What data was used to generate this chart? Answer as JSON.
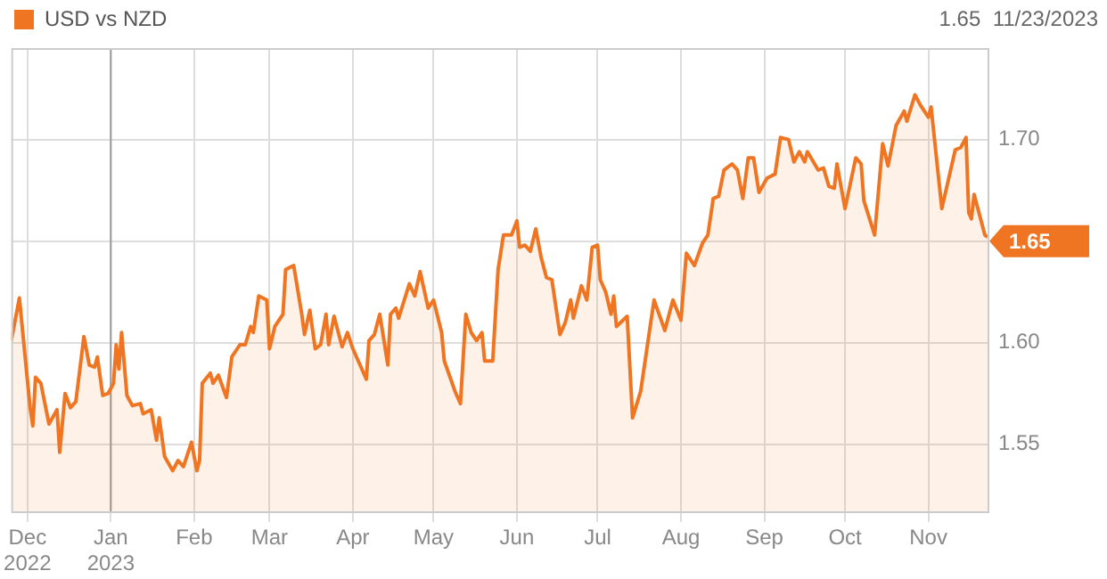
{
  "chart_data": {
    "type": "area",
    "legend": "top left",
    "grid": true,
    "marker": "none",
    "xlim": [
      "2022-11-25",
      "2023-11-23"
    ],
    "xticks": [
      {
        "value": "2022-12-01",
        "label": "Dec\n2022"
      },
      {
        "value": "2023-01-01",
        "label": "Jan\n2023"
      },
      {
        "value": "2023-02-01",
        "label": "Feb"
      },
      {
        "value": "2023-03-01",
        "label": "Mar"
      },
      {
        "value": "2023-04-01",
        "label": "Apr"
      },
      {
        "value": "2023-05-01",
        "label": "May"
      },
      {
        "value": "2023-06-01",
        "label": "Jun"
      },
      {
        "value": "2023-07-01",
        "label": "Jul"
      },
      {
        "value": "2023-08-01",
        "label": "Aug"
      },
      {
        "value": "2023-09-01",
        "label": "Sep"
      },
      {
        "value": "2023-10-01",
        "label": "Oct"
      },
      {
        "value": "2023-11-01",
        "label": "Nov"
      }
    ],
    "ylim": [
      1.517,
      1.745
    ],
    "yticks": [
      1.55,
      {
        "value": 1.6,
        "label": "1.60"
      },
      {
        "value": 1.65,
        "label": null
      },
      {
        "value": 1.7,
        "label": "1.70"
      }
    ],
    "ref_lines": [
      {
        "axis": "x",
        "value": "2023-01-01",
        "color": "#999999"
      }
    ],
    "annotations": [
      "1.65  11/23/2023",
      {
        "text": "1.65",
        "x": "2023-11-23",
        "y": 1.65
      }
    ],
    "series": [
      {
        "name": "USD vs NZD",
        "color": "#f07522",
        "x": [
          "2022-11-25",
          "2022-11-28",
          "2022-12-02",
          "2022-12-03",
          "2022-12-04",
          "2022-12-06",
          "2022-12-09",
          "2022-12-12",
          "2022-12-13",
          "2022-12-15",
          "2022-12-17",
          "2022-12-19",
          "2022-12-22",
          "2022-12-24",
          "2022-12-26",
          "2022-12-27",
          "2022-12-29",
          "2022-12-31",
          "2023-01-02",
          "2023-01-03",
          "2023-01-04",
          "2023-01-05",
          "2023-01-07",
          "2023-01-09",
          "2023-01-12",
          "2023-01-13",
          "2023-01-16",
          "2023-01-18",
          "2023-01-19",
          "2023-01-21",
          "2023-01-24",
          "2023-01-26",
          "2023-01-28",
          "2023-01-31",
          "2023-02-02",
          "2023-02-03",
          "2023-02-04",
          "2023-02-07",
          "2023-02-08",
          "2023-02-10",
          "2023-02-13",
          "2023-02-15",
          "2023-02-18",
          "2023-02-20",
          "2023-02-22",
          "2023-02-23",
          "2023-02-25",
          "2023-02-28",
          "2023-03-01",
          "2023-03-03",
          "2023-03-06",
          "2023-03-07",
          "2023-03-10",
          "2023-03-13",
          "2023-03-14",
          "2023-03-16",
          "2023-03-18",
          "2023-03-20",
          "2023-03-22",
          "2023-03-23",
          "2023-03-25",
          "2023-03-28",
          "2023-03-30",
          "2023-04-01",
          "2023-04-06",
          "2023-04-07",
          "2023-04-09",
          "2023-04-11",
          "2023-04-14",
          "2023-04-15",
          "2023-04-17",
          "2023-04-18",
          "2023-04-22",
          "2023-04-24",
          "2023-04-26",
          "2023-04-29",
          "2023-05-01",
          "2023-05-04",
          "2023-05-05",
          "2023-05-09",
          "2023-05-11",
          "2023-05-13",
          "2023-05-15",
          "2023-05-17",
          "2023-05-19",
          "2023-05-20",
          "2023-05-23",
          "2023-05-25",
          "2023-05-27",
          "2023-05-30",
          "2023-06-01",
          "2023-06-02",
          "2023-06-04",
          "2023-06-06",
          "2023-06-08",
          "2023-06-10",
          "2023-06-12",
          "2023-06-14",
          "2023-06-17",
          "2023-06-19",
          "2023-06-21",
          "2023-06-22",
          "2023-06-25",
          "2023-06-27",
          "2023-06-29",
          "2023-07-01",
          "2023-07-02",
          "2023-07-04",
          "2023-07-06",
          "2023-07-07",
          "2023-07-08",
          "2023-07-12",
          "2023-07-14",
          "2023-07-17",
          "2023-07-19",
          "2023-07-22",
          "2023-07-26",
          "2023-07-29",
          "2023-08-01",
          "2023-08-03",
          "2023-08-06",
          "2023-08-09",
          "2023-08-11",
          "2023-08-13",
          "2023-08-15",
          "2023-08-17",
          "2023-08-20",
          "2023-08-22",
          "2023-08-24",
          "2023-08-26",
          "2023-08-28",
          "2023-08-30",
          "2023-09-02",
          "2023-09-05",
          "2023-09-07",
          "2023-09-10",
          "2023-09-12",
          "2023-09-14",
          "2023-09-16",
          "2023-09-17",
          "2023-09-21",
          "2023-09-23",
          "2023-09-25",
          "2023-09-27",
          "2023-09-28",
          "2023-10-01",
          "2023-10-05",
          "2023-10-07",
          "2023-10-08",
          "2023-10-12",
          "2023-10-15",
          "2023-10-17",
          "2023-10-20",
          "2023-10-23",
          "2023-10-24",
          "2023-10-27",
          "2023-10-29",
          "2023-11-01",
          "2023-11-02",
          "2023-11-06",
          "2023-11-11",
          "2023-11-13",
          "2023-11-15",
          "2023-11-16",
          "2023-11-17",
          "2023-11-18",
          "2023-11-22",
          "2023-11-23"
        ],
        "values": [
          1.601,
          1.622,
          1.568,
          1.559,
          1.583,
          1.58,
          1.56,
          1.567,
          1.546,
          1.575,
          1.568,
          1.571,
          1.603,
          1.589,
          1.588,
          1.593,
          1.574,
          1.575,
          1.58,
          1.599,
          1.587,
          1.605,
          1.574,
          1.569,
          1.57,
          1.565,
          1.567,
          1.552,
          1.563,
          1.544,
          1.537,
          1.542,
          1.539,
          1.551,
          1.537,
          1.542,
          1.58,
          1.585,
          1.58,
          1.584,
          1.573,
          1.593,
          1.599,
          1.599,
          1.608,
          1.605,
          1.623,
          1.621,
          1.597,
          1.608,
          1.614,
          1.636,
          1.638,
          1.614,
          1.604,
          1.616,
          1.597,
          1.599,
          1.614,
          1.599,
          1.613,
          1.598,
          1.605,
          1.597,
          1.582,
          1.601,
          1.604,
          1.614,
          1.589,
          1.614,
          1.617,
          1.612,
          1.629,
          1.623,
          1.635,
          1.617,
          1.621,
          1.605,
          1.591,
          1.576,
          1.57,
          1.614,
          1.605,
          1.601,
          1.605,
          1.591,
          1.591,
          1.636,
          1.653,
          1.653,
          1.66,
          1.647,
          1.648,
          1.645,
          1.656,
          1.642,
          1.632,
          1.631,
          1.604,
          1.61,
          1.621,
          1.612,
          1.628,
          1.621,
          1.647,
          1.648,
          1.631,
          1.625,
          1.614,
          1.623,
          1.608,
          1.613,
          1.563,
          1.576,
          1.594,
          1.621,
          1.606,
          1.621,
          1.611,
          1.644,
          1.638,
          1.649,
          1.653,
          1.671,
          1.672,
          1.685,
          1.688,
          1.685,
          1.671,
          1.691,
          1.691,
          1.674,
          1.681,
          1.683,
          1.701,
          1.7,
          1.689,
          1.694,
          1.689,
          1.694,
          1.685,
          1.686,
          1.677,
          1.676,
          1.688,
          1.666,
          1.691,
          1.688,
          1.67,
          1.653,
          1.698,
          1.687,
          1.707,
          1.714,
          1.709,
          1.722,
          1.717,
          1.711,
          1.716,
          1.666,
          1.695,
          1.696,
          1.701,
          1.664,
          1.661,
          1.673,
          1.653,
          1.652
        ]
      }
    ]
  }
}
